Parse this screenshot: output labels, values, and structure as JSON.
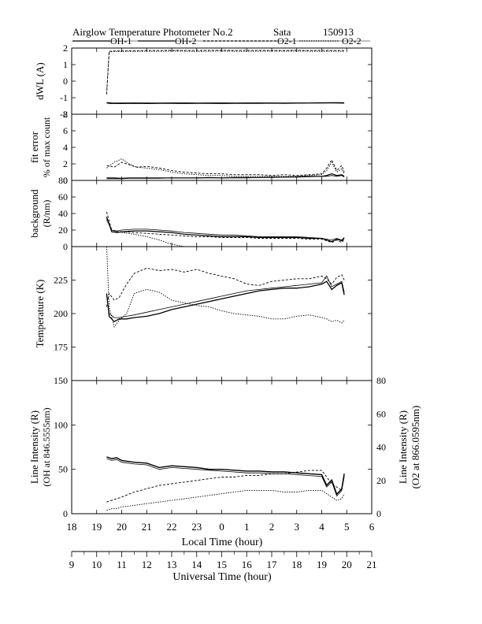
{
  "header": {
    "title": "Airglow Temperature Photometer No.2",
    "station": "Sata",
    "date": "150913",
    "legend": [
      "OH-1",
      "OH-2",
      "O2-1",
      "O2-2"
    ]
  },
  "chart_data": [
    {
      "panel": "dWL",
      "type": "line",
      "ylabel": "dWL (A)",
      "ylim": [
        -2,
        2
      ],
      "yticks": [
        "2",
        "1",
        "0",
        "-1",
        "-2"
      ],
      "x": [
        19.4,
        19.5,
        19.6,
        20,
        20.5,
        21,
        21.5,
        22,
        22.5,
        23,
        23.5,
        24,
        24.5,
        25,
        25.5,
        26,
        26.5,
        27,
        27.5,
        28,
        28.5,
        28.9
      ],
      "series": [
        {
          "name": "OH-1",
          "style": "solid",
          "width": 1.2,
          "values": [
            -1.3,
            -1.3,
            -1.32,
            -1.33,
            -1.32,
            -1.33,
            -1.33,
            -1.32,
            -1.32,
            -1.33,
            -1.32,
            -1.32,
            -1.33,
            -1.32,
            -1.32,
            -1.32,
            -1.33,
            -1.32,
            -1.32,
            -1.31,
            -1.3,
            -1.3
          ]
        },
        {
          "name": "OH-2",
          "style": "solid",
          "width": 0.8,
          "values": [
            -1.33,
            -1.35,
            -1.36,
            -1.36,
            -1.35,
            -1.36,
            -1.35,
            -1.35,
            -1.36,
            -1.35,
            -1.35,
            -1.36,
            -1.35,
            -1.35,
            -1.35,
            -1.34,
            -1.35,
            -1.34,
            -1.33,
            -1.32,
            -1.33,
            -1.34
          ]
        },
        {
          "name": "O2-1",
          "style": "dashed",
          "width": 0.9,
          "values": [
            -0.8,
            1.8,
            1.82,
            1.84,
            1.84,
            1.85,
            1.85,
            1.86,
            1.85,
            1.85,
            1.86,
            1.86,
            1.85,
            1.86,
            1.86,
            1.85,
            1.85,
            1.86,
            1.85,
            1.86,
            1.85,
            1.85
          ]
        },
        {
          "name": "O2-2",
          "style": "dotted",
          "width": 0.9,
          "values": [
            -0.7,
            1.75,
            1.78,
            1.8,
            1.8,
            1.81,
            1.8,
            1.82,
            1.81,
            1.8,
            1.81,
            1.82,
            1.81,
            1.8,
            1.81,
            1.82,
            1.81,
            1.82,
            1.81,
            1.8,
            1.81,
            1.8
          ]
        }
      ]
    },
    {
      "panel": "fit error",
      "type": "line",
      "ylabel": "fit error",
      "ylabel2": "% of max count",
      "ylim": [
        0,
        8
      ],
      "yticks": [
        "8",
        "6",
        "4",
        "2",
        "0"
      ],
      "x": [
        19.4,
        19.7,
        20,
        20.3,
        20.6,
        21,
        21.5,
        22,
        22.5,
        23,
        23.5,
        24,
        24.5,
        25,
        25.5,
        26,
        26.5,
        27,
        27.5,
        28,
        28.2,
        28.4,
        28.6,
        28.8,
        28.9
      ],
      "series": [
        {
          "name": "OH-1",
          "style": "solid",
          "width": 1.2,
          "values": [
            0.3,
            0.3,
            0.25,
            0.3,
            0.3,
            0.3,
            0.3,
            0.3,
            0.3,
            0.3,
            0.35,
            0.3,
            0.35,
            0.35,
            0.35,
            0.4,
            0.4,
            0.45,
            0.5,
            0.5,
            0.6,
            0.8,
            0.6,
            0.7,
            0.5
          ]
        },
        {
          "name": "OH-2",
          "style": "solid",
          "width": 0.8,
          "values": [
            0.2,
            0.2,
            0.2,
            0.25,
            0.25,
            0.25,
            0.25,
            0.3,
            0.3,
            0.3,
            0.3,
            0.3,
            0.3,
            0.3,
            0.35,
            0.35,
            0.4,
            0.4,
            0.45,
            0.5,
            0.5,
            0.6,
            0.5,
            0.6,
            0.4
          ]
        },
        {
          "name": "O2-1",
          "style": "dashed",
          "width": 0.9,
          "values": [
            1.8,
            1.6,
            2.2,
            1.9,
            1.6,
            1.7,
            1.5,
            1.2,
            1.0,
            0.9,
            0.8,
            0.8,
            0.7,
            0.7,
            0.7,
            0.6,
            0.7,
            0.6,
            0.7,
            0.8,
            1.5,
            2.5,
            1.2,
            1.8,
            1.0
          ]
        },
        {
          "name": "O2-2",
          "style": "dotted",
          "width": 0.9,
          "values": [
            1.5,
            2.2,
            2.6,
            2.0,
            1.6,
            1.5,
            1.3,
            1.0,
            0.8,
            0.7,
            0.6,
            0.6,
            0.5,
            0.5,
            0.5,
            0.5,
            0.5,
            0.5,
            0.6,
            0.7,
            1.2,
            2.2,
            1.0,
            1.4,
            0.8
          ]
        }
      ]
    },
    {
      "panel": "background",
      "type": "line",
      "ylabel": "background",
      "ylabel2": "(R/nm)",
      "ylim": [
        0,
        80
      ],
      "yticks": [
        "80",
        "60",
        "40",
        "20",
        "0"
      ],
      "x": [
        19.4,
        19.6,
        19.8,
        20,
        20.5,
        21,
        21.5,
        22,
        22.5,
        23,
        23.5,
        24,
        24.5,
        25,
        25.5,
        26,
        26.5,
        27,
        27.5,
        28,
        28.2,
        28.4,
        28.6,
        28.8,
        28.9
      ],
      "series": [
        {
          "name": "OH-1",
          "style": "solid",
          "width": 1.2,
          "values": [
            36,
            18,
            17,
            18,
            19,
            19,
            18,
            17,
            15,
            14,
            13,
            12,
            12,
            12,
            11,
            11,
            11,
            11,
            10,
            10,
            8,
            6,
            9,
            7,
            10
          ]
        },
        {
          "name": "OH-2",
          "style": "solid",
          "width": 0.8,
          "values": [
            34,
            20,
            19,
            20,
            21,
            21,
            20,
            19,
            17,
            16,
            15,
            14,
            14,
            13,
            12,
            12,
            12,
            12,
            11,
            10,
            9,
            8,
            10,
            8,
            11
          ]
        },
        {
          "name": "O2-1",
          "style": "dashed",
          "width": 0.9,
          "values": [
            42,
            20,
            18,
            18,
            17,
            16,
            15,
            14,
            13,
            12,
            12,
            11,
            11,
            11,
            10,
            10,
            10,
            10,
            9,
            9,
            7,
            5,
            8,
            5,
            9
          ]
        },
        {
          "name": "O2-2",
          "style": "dotted",
          "width": 0.9,
          "values": [
            32,
            20,
            18,
            17,
            15,
            12,
            8,
            3,
            0,
            null,
            null,
            null,
            null,
            null,
            null,
            null,
            null,
            null,
            null,
            null,
            null,
            null,
            null,
            null,
            null
          ]
        }
      ]
    },
    {
      "panel": "temperature",
      "type": "line",
      "ylabel": "Temperature (K)",
      "ylim": [
        150,
        250
      ],
      "yticks": [
        "225",
        "200",
        "175"
      ],
      "x": [
        19.4,
        19.5,
        19.7,
        19.9,
        20.2,
        20.5,
        21,
        21.5,
        22,
        22.5,
        23,
        23.5,
        24,
        24.5,
        25,
        25.5,
        26,
        26.5,
        27,
        27.5,
        28,
        28.2,
        28.4,
        28.6,
        28.8,
        28.9
      ],
      "series": [
        {
          "name": "OH-1",
          "style": "solid",
          "width": 1.3,
          "values": [
            215,
            198,
            194,
            196,
            196,
            197,
            198,
            200,
            203,
            205,
            207,
            209,
            211,
            213,
            215,
            217,
            218,
            219,
            219,
            220,
            222,
            224,
            218,
            221,
            223,
            214
          ]
        },
        {
          "name": "OH-2",
          "style": "solid",
          "width": 0.8,
          "values": [
            214,
            200,
            197,
            197,
            198,
            199,
            201,
            203,
            205,
            207,
            209,
            211,
            213,
            215,
            217,
            218,
            219,
            220,
            221,
            222,
            223,
            228,
            220,
            222,
            224,
            216
          ]
        },
        {
          "name": "O2-1",
          "style": "dashed",
          "width": 0.9,
          "values": [
            205,
            215,
            210,
            212,
            222,
            230,
            234,
            232,
            233,
            231,
            233,
            230,
            228,
            226,
            222,
            221,
            224,
            225,
            226,
            226,
            228,
            226,
            222,
            227,
            229,
            225
          ]
        },
        {
          "name": "O2-2",
          "style": "dotted",
          "width": 0.9,
          "values": [
            255,
            205,
            190,
            195,
            200,
            215,
            218,
            216,
            210,
            208,
            206,
            205,
            202,
            200,
            199,
            198,
            196,
            196,
            198,
            199,
            197,
            196,
            194,
            195,
            193,
            195
          ]
        }
      ]
    },
    {
      "panel": "line intensity",
      "type": "line",
      "ylabel": "Line Intensity (R)",
      "ylabel2": "(OH at 846.5555nm)",
      "ylabel_right": "Line Intensity (R)",
      "ylabel_right2": "(O2 at 866.0595nm)",
      "ylim": [
        0,
        150
      ],
      "ylim_right": [
        0,
        80
      ],
      "yticks": [
        "150",
        "100",
        "50",
        "0"
      ],
      "yticks_right": [
        "80",
        "60",
        "40",
        "20",
        "0"
      ],
      "x": [
        19.4,
        19.6,
        19.8,
        20,
        20.5,
        21,
        21.5,
        22,
        22.5,
        23,
        23.5,
        24,
        24.5,
        25,
        25.5,
        26,
        26.5,
        27,
        27.5,
        28,
        28.2,
        28.4,
        28.6,
        28.8,
        28.9
      ],
      "series": [
        {
          "name": "OH-1",
          "axis": "left",
          "style": "solid",
          "width": 1.4,
          "values": [
            64,
            62,
            63,
            60,
            58,
            57,
            52,
            54,
            53,
            52,
            50,
            50,
            49,
            48,
            48,
            47,
            47,
            46,
            45,
            44,
            32,
            38,
            22,
            28,
            45
          ]
        },
        {
          "name": "OH-2",
          "axis": "left",
          "style": "solid",
          "width": 0.8,
          "values": [
            62,
            60,
            61,
            58,
            56,
            55,
            50,
            52,
            51,
            50,
            49,
            48,
            47,
            46,
            46,
            45,
            45,
            44,
            43,
            42,
            30,
            36,
            20,
            26,
            42
          ]
        },
        {
          "name": "O2-1",
          "axis": "right",
          "style": "dashed",
          "width": 0.9,
          "values": [
            7,
            8,
            9,
            10,
            13,
            15,
            17,
            18,
            19,
            20,
            21,
            22,
            22,
            23,
            23,
            24,
            24,
            25,
            26,
            26,
            22,
            18,
            16,
            14,
            24
          ]
        },
        {
          "name": "O2-2",
          "axis": "right",
          "style": "dotted",
          "width": 0.9,
          "values": [
            2,
            3,
            3,
            4,
            5,
            6,
            7,
            8,
            9,
            10,
            11,
            12,
            13,
            14,
            14,
            14,
            13,
            13,
            14,
            14,
            12,
            10,
            8,
            9,
            12
          ]
        }
      ]
    }
  ],
  "axes": {
    "local_label": "Local Time (hour)",
    "local_ticks": [
      "18",
      "19",
      "20",
      "21",
      "22",
      "23",
      "0",
      "1",
      "2",
      "3",
      "4",
      "5",
      "6"
    ],
    "ut_label": "Universal Time (hour)",
    "ut_ticks": [
      "9",
      "10",
      "11",
      "12",
      "13",
      "14",
      "15",
      "16",
      "17",
      "18",
      "19",
      "20",
      "21"
    ]
  }
}
